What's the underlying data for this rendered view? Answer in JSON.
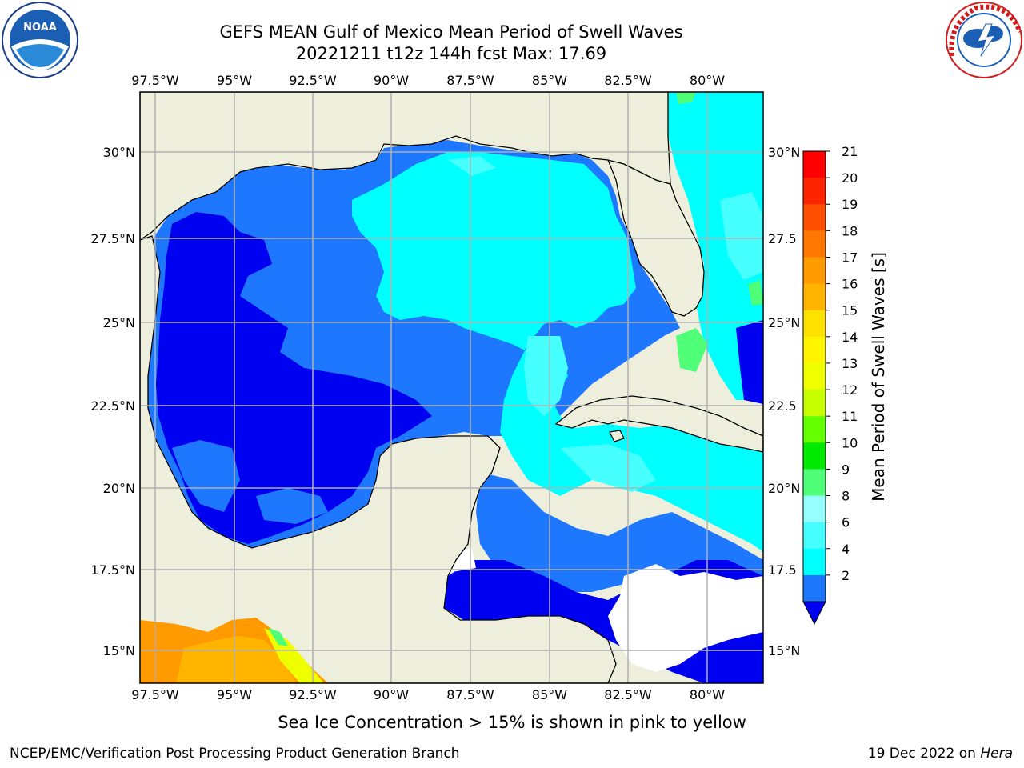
{
  "header": {
    "title_line1": "GEFS MEAN Gulf of Mexico Mean Period of Swell Waves",
    "title_line2": "20221211 t12z 144h fcst   Max: 17.69"
  },
  "logos": {
    "left": {
      "name": "noaa-logo",
      "text": "NOAA"
    },
    "right": {
      "name": "nws-logo",
      "text": "NATIONAL WEATHER SERVICE"
    }
  },
  "map": {
    "lon_ticks_top": [
      "97.5°W",
      "95°W",
      "92.5°W",
      "90°W",
      "87.5°W",
      "85°W",
      "82.5°W",
      "80°W"
    ],
    "lon_ticks_bottom": [
      "97.5°W",
      "95°W",
      "92.5°W",
      "90°W",
      "87.5°W",
      "85°W",
      "82.5°W",
      "80°W"
    ],
    "lat_ticks_left": [
      "30°N",
      "27.5°N",
      "25°N",
      "22.5°N",
      "20°N",
      "17.5°N",
      "15°N"
    ],
    "lat_ticks_right": [
      "30°N",
      "27.5",
      "25°N",
      "22.5",
      "20°N",
      "17.5",
      "15°N"
    ],
    "colors": {
      "land": "#eeeedc",
      "ocean_deep": "#0000f0",
      "ocean_mid": "#1e78ff",
      "ocean_light": "#00ffff",
      "ocean_pale": "#46ffff",
      "ocean_green": "#50ff78",
      "ice_orange": "#ff9a00",
      "ice_amber": "#ffb400",
      "ice_yellow": "#f0ff00",
      "missing": "#ffffff",
      "grid": "#b0b0b0"
    }
  },
  "colorbar": {
    "title": "Mean Period of Swell Waves [s]",
    "labels": [
      "21",
      "20",
      "19",
      "18",
      "17",
      "16",
      "15",
      "14",
      "13",
      "12",
      "11",
      "10",
      "9",
      "8",
      "6",
      "4",
      "2"
    ],
    "colors": [
      "#ff0000",
      "#ff2400",
      "#ff4f00",
      "#ff7600",
      "#ff9a00",
      "#ffb400",
      "#ffe100",
      "#fff500",
      "#f0ff00",
      "#c8ff00",
      "#64ff00",
      "#00eb00",
      "#50ff78",
      "#96ffff",
      "#46ffff",
      "#00ffff",
      "#1e78ff"
    ],
    "extend_color": "#0000f0"
  },
  "caption": "Sea Ice Concentration > 15% is shown in pink to yellow",
  "footer": {
    "left": "NCEP/EMC/Verification Post Processing Product Generation Branch",
    "right_date": "19 Dec 2022 on ",
    "right_host": "Hera"
  }
}
